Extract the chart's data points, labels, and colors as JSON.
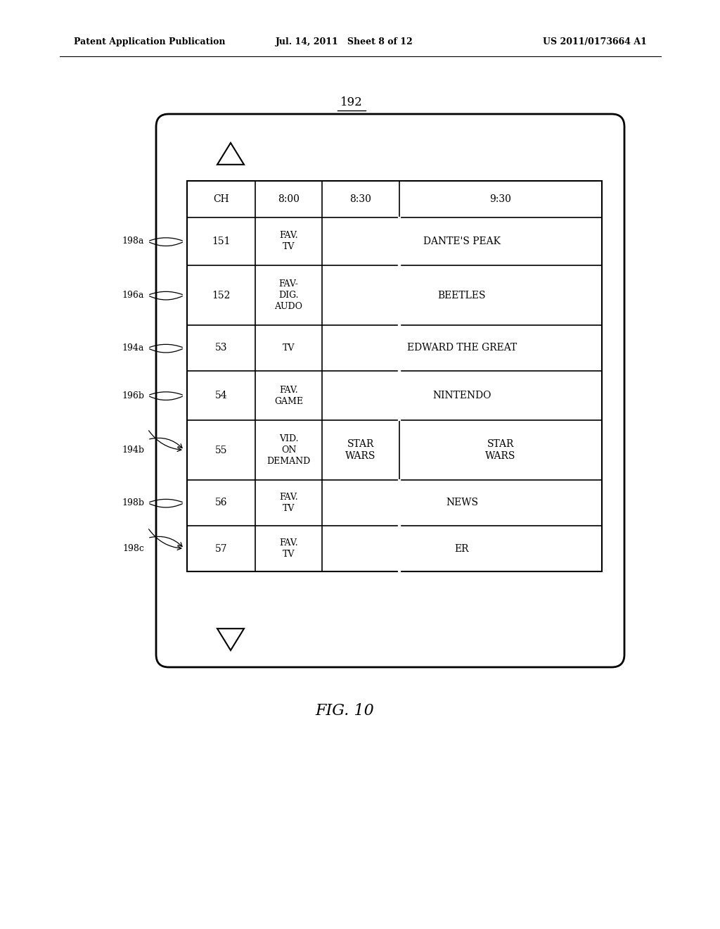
{
  "header_text_left": "Patent Application Publication",
  "header_text_mid": "Jul. 14, 2011   Sheet 8 of 12",
  "header_text_right": "US 2011/0173664 A1",
  "diagram_label": "192",
  "fig_label": "FIG. 10",
  "table_headers": [
    "CH",
    "8:00",
    "8:30",
    "9:30"
  ],
  "rows": [
    {
      "ch": "151",
      "type": "FAV.\nTV",
      "cols": [
        "DANTE'S PEAK",
        ""
      ],
      "split": false
    },
    {
      "ch": "152",
      "type": "FAV-\nDIG.\nAUDO",
      "cols": [
        "BEETLES",
        ""
      ],
      "split": false
    },
    {
      "ch": "53",
      "type": "TV",
      "cols": [
        "EDWARD THE GREAT",
        ""
      ],
      "split": false
    },
    {
      "ch": "54",
      "type": "FAV.\nGAME",
      "cols": [
        "NINTENDO",
        ""
      ],
      "split": false
    },
    {
      "ch": "55",
      "type": "VID.\nON\nDEMAND",
      "cols": [
        "STAR\nWARS",
        "STAR\nWARS"
      ],
      "split": true
    },
    {
      "ch": "56",
      "type": "FAV.\nTV",
      "cols": [
        "NEWS",
        ""
      ],
      "split": false
    },
    {
      "ch": "57",
      "type": "FAV.\nTV",
      "cols": [
        "ER",
        ""
      ],
      "split": false
    }
  ],
  "labels_left": [
    {
      "text": "198a",
      "row": 0,
      "arrow": false
    },
    {
      "text": "196a",
      "row": 1,
      "arrow": false
    },
    {
      "text": "194a",
      "row": 2,
      "arrow": false
    },
    {
      "text": "196b",
      "row": 3,
      "arrow": false
    },
    {
      "text": "194b",
      "row": 4,
      "arrow": true
    },
    {
      "text": "198b",
      "row": 5,
      "arrow": false
    },
    {
      "text": "198c",
      "row": 6,
      "arrow": true
    }
  ],
  "bg_color": "#ffffff",
  "line_color": "#000000",
  "text_color": "#000000",
  "font_size_header": 9,
  "font_size_table": 9,
  "font_size_label": 8,
  "font_size_fig": 15
}
